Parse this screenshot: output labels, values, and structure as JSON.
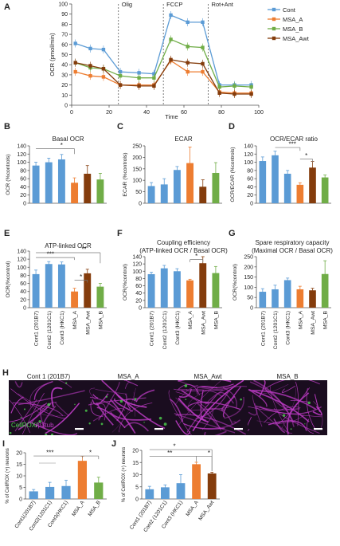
{
  "colors": {
    "cont": "#5b9bd5",
    "msa_a": "#ed7d31",
    "msa_b": "#70ad47",
    "msa_awt": "#843c0c",
    "axis": "#555555",
    "photo_bg": "#1a0d1f",
    "photo_magenta": "#c03cc8",
    "photo_green": "#4cd24c",
    "scalebar": "#ffffff"
  },
  "chart_data": [
    {
      "panel": "A",
      "type": "line",
      "title": "",
      "xlabel": "Time",
      "ylabel": "OCR (pmol/min)",
      "xlim": [
        0,
        100
      ],
      "ylim": [
        0,
        100
      ],
      "xticks": [
        0,
        20,
        40,
        60,
        80,
        100
      ],
      "yticks": [
        0,
        10,
        20,
        30,
        40,
        50,
        60,
        70,
        80,
        90,
        100
      ],
      "x": [
        2,
        10,
        17,
        26,
        36,
        44,
        53,
        62,
        70,
        79,
        87,
        96
      ],
      "injections": [
        {
          "label": "Olig",
          "x": 25
        },
        {
          "label": "FCCP",
          "x": 49
        },
        {
          "label": "Rot+Ant",
          "x": 73
        }
      ],
      "legend_position": "top-right",
      "series": [
        {
          "name": "Cont",
          "color_key": "cont",
          "values": [
            61,
            56,
            55,
            33,
            32,
            31,
            89,
            82,
            82,
            20,
            20,
            20
          ]
        },
        {
          "name": "MSA_A",
          "color_key": "msa_a",
          "values": [
            33,
            29,
            28,
            20,
            20,
            20,
            44,
            33,
            33,
            13,
            12,
            12
          ]
        },
        {
          "name": "MSA_B",
          "color_key": "msa_b",
          "values": [
            42,
            37,
            36,
            29,
            27,
            27,
            65,
            58,
            57,
            18,
            19,
            18
          ]
        },
        {
          "name": "MSA_Awt",
          "color_key": "msa_awt",
          "values": [
            42,
            39,
            36,
            20,
            19,
            19,
            45,
            42,
            41,
            12,
            11,
            11
          ]
        }
      ]
    },
    {
      "panel": "B",
      "type": "bar",
      "title": "Basal OCR",
      "ylabel": "OCR (%controls)",
      "ylim": [
        0,
        140
      ],
      "yticks": [
        0,
        20,
        40,
        60,
        80,
        100,
        120,
        140
      ],
      "categories": [
        "Cont1 (201B7)",
        "Cont2 (1201C1)",
        "Cont3 (HKC1)",
        "MSA_A",
        "MSA_Awt",
        "MSA_B"
      ],
      "values": [
        92,
        100,
        107,
        50,
        72,
        58
      ],
      "errors": [
        8,
        10,
        12,
        12,
        20,
        15
      ],
      "bar_colors": [
        "cont",
        "cont",
        "cont",
        "msa_a",
        "msa_awt",
        "msa_b"
      ],
      "significance": [
        "*"
      ]
    },
    {
      "panel": "C",
      "type": "bar",
      "title": "ECAR",
      "ylabel": "ECAR (%controls)",
      "ylim": [
        0,
        250
      ],
      "yticks": [
        0,
        50,
        100,
        150,
        200,
        250
      ],
      "categories": [
        "Cont1 (201B7)",
        "Cont2 (1201C1)",
        "Cont3 (HKC1)",
        "MSA_A",
        "MSA_Awt",
        "MSA_B"
      ],
      "values": [
        75,
        82,
        145,
        175,
        72,
        132
      ],
      "errors": [
        15,
        25,
        15,
        70,
        30,
        45
      ],
      "bar_colors": [
        "cont",
        "cont",
        "cont",
        "msa_a",
        "msa_awt",
        "msa_b"
      ],
      "significance": []
    },
    {
      "panel": "D",
      "type": "bar",
      "title": "OCR/ECAR ratio",
      "ylabel": "OCR/ECAR (%controls)",
      "ylim": [
        0,
        140
      ],
      "yticks": [
        0,
        20,
        40,
        60,
        80,
        100,
        120,
        140
      ],
      "categories": [
        "Cont1 (201B7)",
        "Cont2 (1201C1)",
        "Cont3 (HKC1)",
        "MSA_A",
        "MSA_Awt",
        "MSA_B"
      ],
      "values": [
        103,
        117,
        72,
        45,
        87,
        63
      ],
      "errors": [
        10,
        10,
        8,
        5,
        15,
        6
      ],
      "bar_colors": [
        "cont",
        "cont",
        "cont",
        "msa_a",
        "msa_awt",
        "msa_b"
      ],
      "significance": [
        "***",
        "*"
      ]
    },
    {
      "panel": "E",
      "type": "bar",
      "title": "ATP-linked OCR",
      "ylabel": "OCR(%control)",
      "ylim": [
        0,
        140
      ],
      "yticks": [
        0,
        20,
        40,
        60,
        80,
        100,
        120,
        140
      ],
      "categories": [
        "Cont1 (201B7)",
        "Cont2 (1201C1)",
        "Cont3 (HKC1)",
        "MSA_A",
        "MSA_Awt",
        "MSA_B"
      ],
      "values": [
        83,
        108,
        107,
        40,
        85,
        52
      ],
      "errors": [
        10,
        6,
        6,
        8,
        10,
        8
      ],
      "bar_colors": [
        "cont",
        "cont",
        "cont",
        "msa_a",
        "msa_awt",
        "msa_b"
      ],
      "significance": [
        "**",
        "***",
        "*"
      ]
    },
    {
      "panel": "F",
      "type": "bar",
      "title": "Coupling efficiency",
      "subtitle": "(ATP-linked OCR / Basal OCR)",
      "ylabel": "OCR(%control)",
      "ylim": [
        0,
        140
      ],
      "yticks": [
        0,
        20,
        40,
        60,
        80,
        100,
        120,
        140
      ],
      "categories": [
        "Cont1 (201B7)",
        "Cont2 (1201C1)",
        "Cont3 (HKC1)",
        "MSA_A",
        "MSA_Awt",
        "MSA_B"
      ],
      "values": [
        92,
        108,
        100,
        75,
        122,
        95
      ],
      "errors": [
        5,
        8,
        7,
        3,
        18,
        18
      ],
      "bar_colors": [
        "cont",
        "cont",
        "cont",
        "msa_a",
        "msa_awt",
        "msa_b"
      ],
      "significance": [
        "*"
      ]
    },
    {
      "panel": "G",
      "type": "bar",
      "title": "Spare respiratory capacity",
      "subtitle": "(Maximal OCR / Basal OCR)",
      "ylabel": "OCR(%control)",
      "ylim": [
        0,
        250
      ],
      "yticks": [
        0,
        50,
        100,
        150,
        200,
        250
      ],
      "categories": [
        "Cont1 (201B7)",
        "Cont2 (1201C1)",
        "Cont3 (HKC1)",
        "MSA_A",
        "MSA_Awt",
        "MSA_B"
      ],
      "values": [
        78,
        90,
        135,
        90,
        85,
        165
      ],
      "errors": [
        15,
        20,
        10,
        15,
        10,
        65
      ],
      "bar_colors": [
        "cont",
        "cont",
        "cont",
        "msa_a",
        "msa_awt",
        "msa_b"
      ],
      "significance": []
    },
    {
      "panel": "I",
      "type": "bar",
      "title": "",
      "ylabel": "% of CellROX (+) neurons",
      "ylim": [
        0,
        20
      ],
      "yticks": [
        0,
        5,
        10,
        15,
        20
      ],
      "categories": [
        "Cont1(201B7)",
        "Cont2(1201C1)",
        "Cont3(HKC1)",
        "MSA_A",
        "MSA_B"
      ],
      "values": [
        3.3,
        5.2,
        5.6,
        16.5,
        7.1
      ],
      "errors": [
        0.8,
        2.0,
        2.5,
        2.0,
        2.3
      ],
      "bar_colors": [
        "cont",
        "cont",
        "cont",
        "msa_a",
        "msa_b"
      ],
      "significance": [
        "***",
        "*"
      ]
    },
    {
      "panel": "J",
      "type": "bar",
      "title": "",
      "ylabel": "% of CellROX (+) neurons",
      "ylim": [
        0,
        20
      ],
      "yticks": [
        0,
        5,
        10,
        15,
        20
      ],
      "categories": [
        "Cont1 (201B7)",
        "Cont2 (1201C1)",
        "Cont3 (HKC1)",
        "MSA_A",
        "MSA_Awt"
      ],
      "values": [
        4.0,
        4.8,
        6.5,
        14.3,
        10.5
      ],
      "errors": [
        1.2,
        1.0,
        3.5,
        0.8,
        0.5
      ],
      "bar_colors": [
        "cont",
        "cont",
        "cont",
        "msa_a",
        "msa_awt"
      ],
      "significance": [
        "**",
        "*",
        "*"
      ]
    }
  ],
  "panel_letters": [
    "A",
    "B",
    "C",
    "D",
    "E",
    "F",
    "G",
    "H",
    "I",
    "J"
  ],
  "photo_row": {
    "titles": [
      "Cont 1 (201B7)",
      "MSA_A",
      "MSA_Awt",
      "MSA_B"
    ],
    "stain_label_green": "CellROX",
    "stain_label_sep": "/",
    "stain_label_magenta": "β3tub"
  }
}
